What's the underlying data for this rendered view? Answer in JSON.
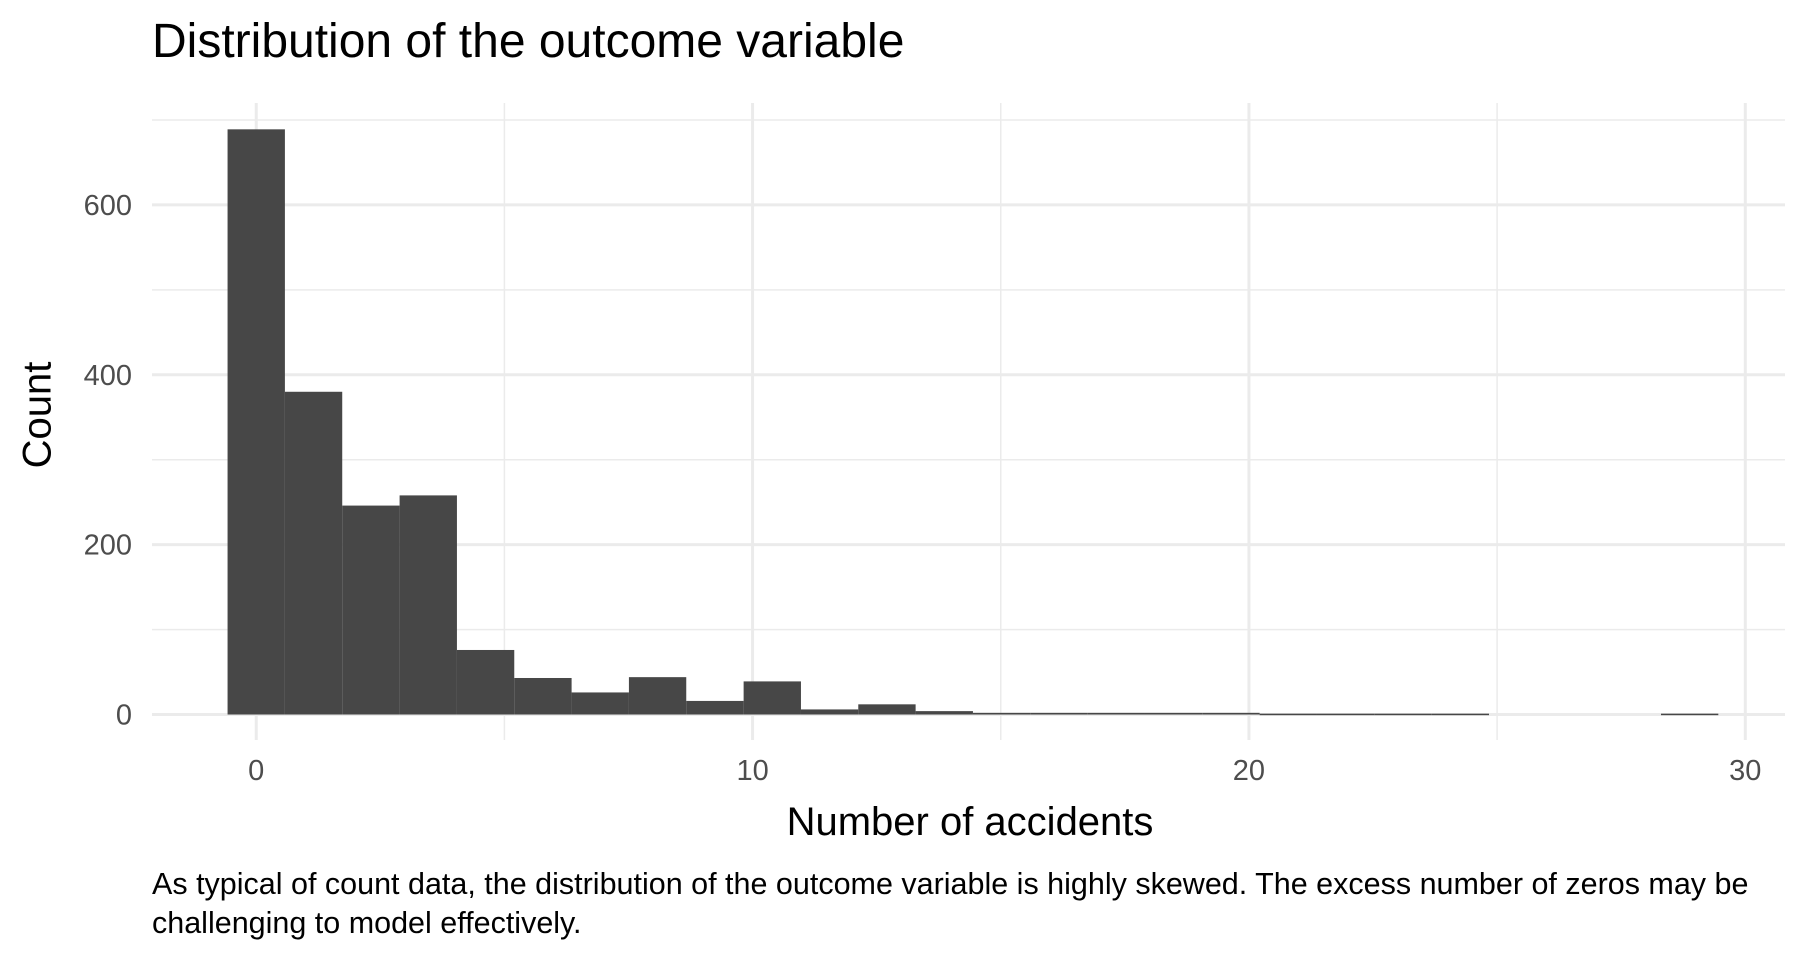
{
  "chart_data": {
    "type": "bar",
    "title": "Distribution of the outcome variable",
    "xlabel": "Number of accidents",
    "ylabel": "Count",
    "caption": "As typical of count data, the distribution of the outcome variable is highly skewed. The excess number of zeros may be challenging to model effectively.",
    "bin_width": 1.1551724,
    "bins": [
      {
        "center": 0.0,
        "count": 689
      },
      {
        "center": 1.155,
        "count": 380
      },
      {
        "center": 2.31,
        "count": 246
      },
      {
        "center": 3.466,
        "count": 258
      },
      {
        "center": 4.621,
        "count": 76
      },
      {
        "center": 5.776,
        "count": 43
      },
      {
        "center": 6.931,
        "count": 26
      },
      {
        "center": 8.086,
        "count": 44
      },
      {
        "center": 9.241,
        "count": 16
      },
      {
        "center": 10.397,
        "count": 39
      },
      {
        "center": 11.552,
        "count": 6
      },
      {
        "center": 12.707,
        "count": 12
      },
      {
        "center": 13.862,
        "count": 4
      },
      {
        "center": 15.017,
        "count": 2
      },
      {
        "center": 16.172,
        "count": 2
      },
      {
        "center": 17.328,
        "count": 2
      },
      {
        "center": 18.483,
        "count": 2
      },
      {
        "center": 19.638,
        "count": 2
      },
      {
        "center": 20.793,
        "count": 1
      },
      {
        "center": 21.948,
        "count": 1
      },
      {
        "center": 23.103,
        "count": 1
      },
      {
        "center": 24.259,
        "count": 1
      },
      {
        "center": 25.414,
        "count": 0
      },
      {
        "center": 26.569,
        "count": 0
      },
      {
        "center": 27.724,
        "count": 0
      },
      {
        "center": 28.879,
        "count": 1
      }
    ],
    "x_ticks": [
      0,
      10,
      20,
      30
    ],
    "y_ticks": [
      0,
      200,
      400,
      600
    ],
    "xlim": [
      -2.1,
      30.8
    ],
    "ylim": [
      -30,
      720
    ],
    "bar_color": "#474747",
    "grid": true,
    "grid_color": "#ebebeb"
  }
}
